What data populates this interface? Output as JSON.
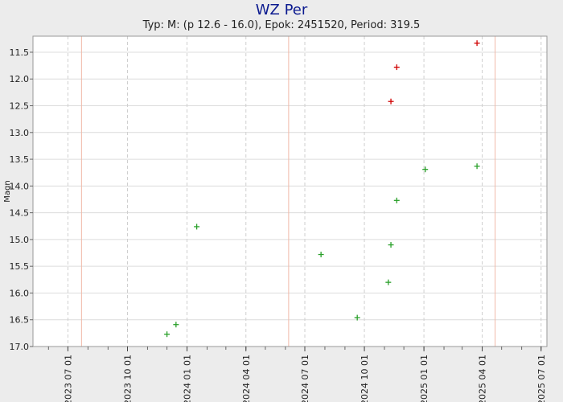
{
  "chart_data": {
    "type": "scatter",
    "title": "WZ Per",
    "subtitle": "Typ: M: (p 12.6 - 16.0), Epok: 2451520, Period: 319.5",
    "ylabel": "Magn",
    "xlabel": "",
    "ylim": [
      11.2,
      17.0
    ],
    "y_inverted": true,
    "xlim": [
      "2023-05-08",
      "2025-07-10"
    ],
    "yticks": [
      11.5,
      12.0,
      12.5,
      13.0,
      13.5,
      14.0,
      14.5,
      15.0,
      15.5,
      16.0,
      16.5,
      17.0
    ],
    "ytick_labels": [
      "11.5",
      "12.0",
      "12.5",
      "13.0",
      "13.5",
      "14.0",
      "14.5",
      "15.0",
      "15.5",
      "16.0",
      "16.5",
      "17.0"
    ],
    "xticks": [
      "2023-07-01",
      "2023-10-01",
      "2024-01-01",
      "2024-04-01",
      "2024-07-01",
      "2024-10-01",
      "2025-01-01",
      "2025-04-01",
      "2025-07-01"
    ],
    "xtick_labels": [
      "2023 07 01",
      "2023 10 01",
      "2024 01 01",
      "2024 04 01",
      "2024 07 01",
      "2024 10 01",
      "2025 01 01",
      "2025 04 01",
      "2025 07 01"
    ],
    "maxima_dates": [
      "2023-07-22",
      "2024-06-06",
      "2025-04-21"
    ],
    "grid": true,
    "series": [
      {
        "color": "#d00000",
        "points": [
          {
            "x": "2024-11-11",
            "y": 12.42
          },
          {
            "x": "2024-11-20",
            "y": 11.78
          },
          {
            "x": "2025-03-24",
            "y": 11.33
          }
        ]
      },
      {
        "color": "#2aa02a",
        "points": [
          {
            "x": "2023-12-01",
            "y": 16.77
          },
          {
            "x": "2023-12-15",
            "y": 16.59
          },
          {
            "x": "2024-01-16",
            "y": 14.76
          },
          {
            "x": "2024-07-26",
            "y": 15.28
          },
          {
            "x": "2024-09-20",
            "y": 16.46
          },
          {
            "x": "2024-11-07",
            "y": 15.8
          },
          {
            "x": "2024-11-11",
            "y": 15.1
          },
          {
            "x": "2024-11-20",
            "y": 14.27
          },
          {
            "x": "2025-01-03",
            "y": 13.69
          },
          {
            "x": "2025-03-24",
            "y": 13.63
          }
        ]
      }
    ]
  }
}
